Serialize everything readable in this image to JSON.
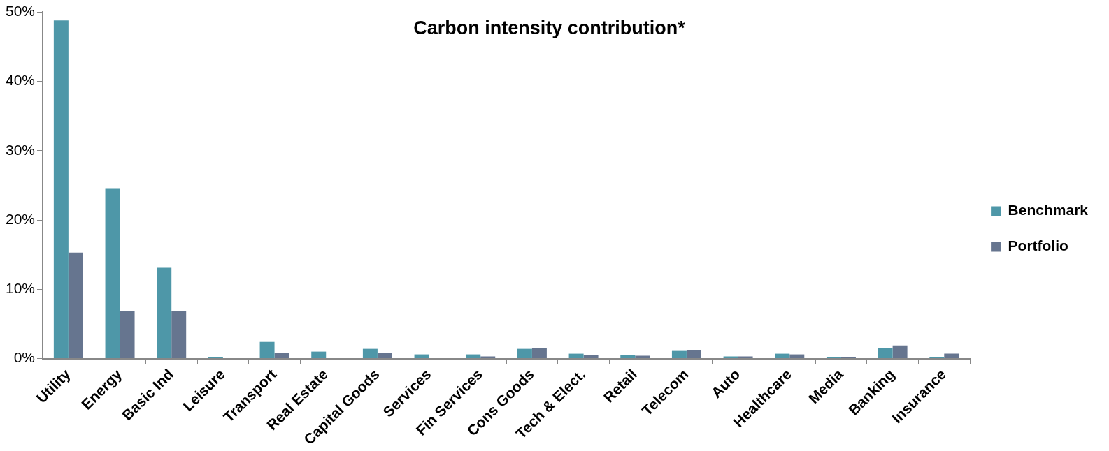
{
  "chart_data": {
    "type": "bar",
    "title": "Carbon intensity contribution*",
    "categories": [
      "Utility",
      "Energy",
      "Basic Ind",
      "Leisure",
      "Transport",
      "Real Estate",
      "Capital Goods",
      "Services",
      "Fin Services",
      "Cons Goods",
      "Tech & Elect.",
      "Retail",
      "Telecom",
      "Auto",
      "Healthcare",
      "Media",
      "Banking",
      "Insurance"
    ],
    "series": [
      {
        "name": "Benchmark",
        "color": "#4e97a8",
        "values": [
          48.8,
          24.5,
          13.1,
          0.2,
          2.4,
          1.0,
          1.4,
          0.6,
          0.6,
          1.4,
          0.7,
          0.5,
          1.1,
          0.3,
          0.7,
          0.2,
          1.5,
          0.2
        ]
      },
      {
        "name": "Portfolio",
        "color": "#66758f",
        "values": [
          15.3,
          6.8,
          6.8,
          0,
          0.8,
          0,
          0.8,
          0,
          0.3,
          1.5,
          0.5,
          0.4,
          1.2,
          0.3,
          0.6,
          0.2,
          1.9,
          0.7
        ]
      }
    ],
    "ylim": [
      0,
      50
    ],
    "yticks": [
      {
        "value": 0,
        "label": "0%"
      },
      {
        "value": 10,
        "label": "10%"
      },
      {
        "value": 20,
        "label": "20%"
      },
      {
        "value": 30,
        "label": "30%"
      },
      {
        "value": 40,
        "label": "40%"
      },
      {
        "value": 50,
        "label": "50%"
      }
    ],
    "grid": false,
    "legend": "right"
  }
}
